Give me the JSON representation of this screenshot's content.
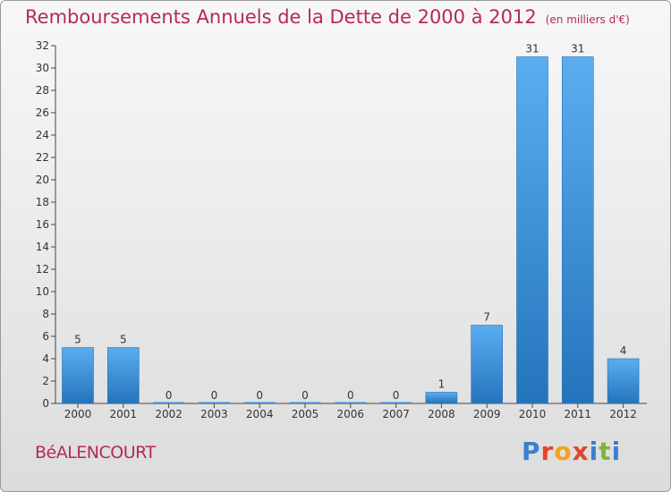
{
  "title": "Remboursements Annuels de la Dette de 2000 à 2012",
  "unit": "(en milliers d'€)",
  "commune": "BéALENCOURT",
  "logo": {
    "text": "Proxiti"
  },
  "colors": {
    "title": "#b5295a",
    "bar": "#4a9fe0",
    "bar_dark": "#2474bb"
  },
  "chart_data": {
    "type": "bar",
    "title": "Remboursements Annuels de la Dette de 2000 à 2012",
    "ylabel": "",
    "xlabel": "",
    "categories": [
      "2000",
      "2001",
      "2002",
      "2003",
      "2004",
      "2005",
      "2006",
      "2007",
      "2008",
      "2009",
      "2010",
      "2011",
      "2012"
    ],
    "values": [
      5,
      5,
      0,
      0,
      0,
      0,
      0,
      0,
      1,
      7,
      31,
      31,
      4
    ],
    "ylim": [
      0,
      32
    ],
    "yticks": [
      0,
      2,
      4,
      6,
      8,
      10,
      12,
      14,
      16,
      18,
      20,
      22,
      24,
      26,
      28,
      30,
      32
    ],
    "grid": false,
    "legend": "none"
  }
}
